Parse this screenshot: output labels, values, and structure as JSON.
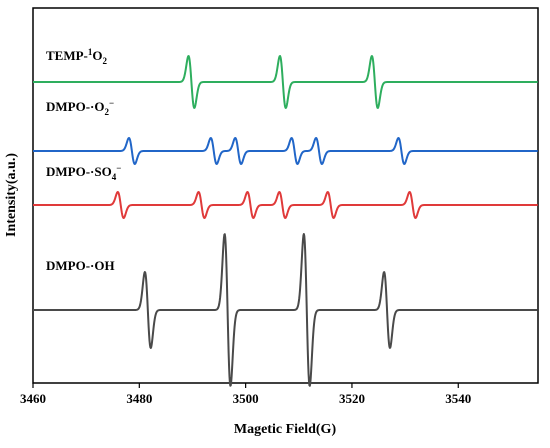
{
  "chart_data": {
    "type": "line",
    "title": "",
    "xlabel": "Magetic Field(G)",
    "ylabel": "Intensity(a.u.)",
    "xlim": [
      3460,
      3555
    ],
    "x_ticks": [
      3460,
      3480,
      3500,
      3520,
      3540
    ],
    "x_tick_labels": [
      "3460",
      "3480",
      "3500",
      "3520",
      "3540"
    ],
    "y_ticks_shown": false,
    "grid": false,
    "series": [
      {
        "name": "TEMP-¹O₂",
        "label_parts": [
          [
            "TEMP-",
            "n"
          ],
          [
            "1",
            "sup"
          ],
          [
            "O",
            "n"
          ],
          [
            "2",
            "sub"
          ]
        ],
        "color": "#2eae5e",
        "peaks": [
          3489.8,
          3507.0,
          3524.3
        ],
        "amplitudes": [
          1,
          1,
          1
        ]
      },
      {
        "name": "DMPO-·O₂⁻",
        "label_parts": [
          [
            "DMPO-·O",
            "n"
          ],
          [
            "2",
            "sub"
          ],
          [
            "−",
            "sup"
          ]
        ],
        "color": "#2166c8",
        "peaks": [
          3478.6,
          3494.0,
          3498.6,
          3509.2,
          3513.8,
          3529.3
        ],
        "amplitudes": [
          1,
          1,
          1,
          1,
          1,
          1
        ]
      },
      {
        "name": "DMPO-·SO₄⁻",
        "label_parts": [
          [
            "DMPO-·SO",
            "n"
          ],
          [
            "4",
            "sub"
          ],
          [
            "−",
            "sup"
          ]
        ],
        "color": "#e03a3a",
        "peaks": [
          3476.5,
          3491.7,
          3500.9,
          3506.9,
          3516.0,
          3531.4
        ],
        "amplitudes": [
          1,
          1,
          1,
          1,
          1,
          1
        ]
      },
      {
        "name": "DMPO-·OH",
        "label_parts": [
          [
            "DMPO-·OH",
            "n"
          ]
        ],
        "color": "#4a4a4a",
        "peaks": [
          3481.6,
          3496.6,
          3511.5,
          3526.6
        ],
        "amplitudes": [
          1,
          2,
          2,
          1
        ]
      }
    ]
  }
}
